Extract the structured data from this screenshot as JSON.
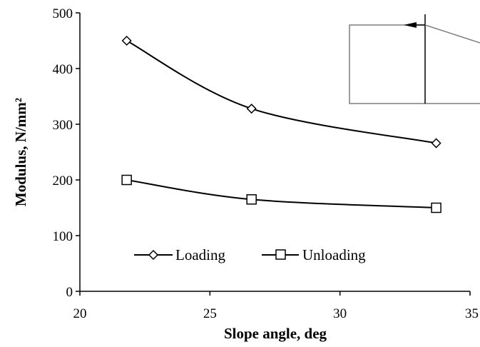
{
  "chart_data": {
    "type": "line",
    "xlabel": "Slope angle, deg",
    "ylabel": "Modulus, N/mm²",
    "xlim": [
      20,
      35
    ],
    "ylim": [
      0,
      500
    ],
    "x_ticks": [
      "20",
      "25",
      "30",
      "35"
    ],
    "y_ticks": [
      "0",
      "100",
      "200",
      "300",
      "400",
      "500"
    ],
    "grid": false,
    "legend_position": "lower-center",
    "series": [
      {
        "name": "Loading",
        "marker": "diamond",
        "x": [
          21.8,
          26.6,
          33.7
        ],
        "values": [
          450,
          328,
          266
        ]
      },
      {
        "name": "Unloading",
        "marker": "square",
        "x": [
          21.8,
          26.6,
          33.7
        ],
        "values": [
          200,
          165,
          150
        ]
      }
    ]
  },
  "colors": {
    "line": "#000000",
    "inset": "#7f7f7f"
  }
}
